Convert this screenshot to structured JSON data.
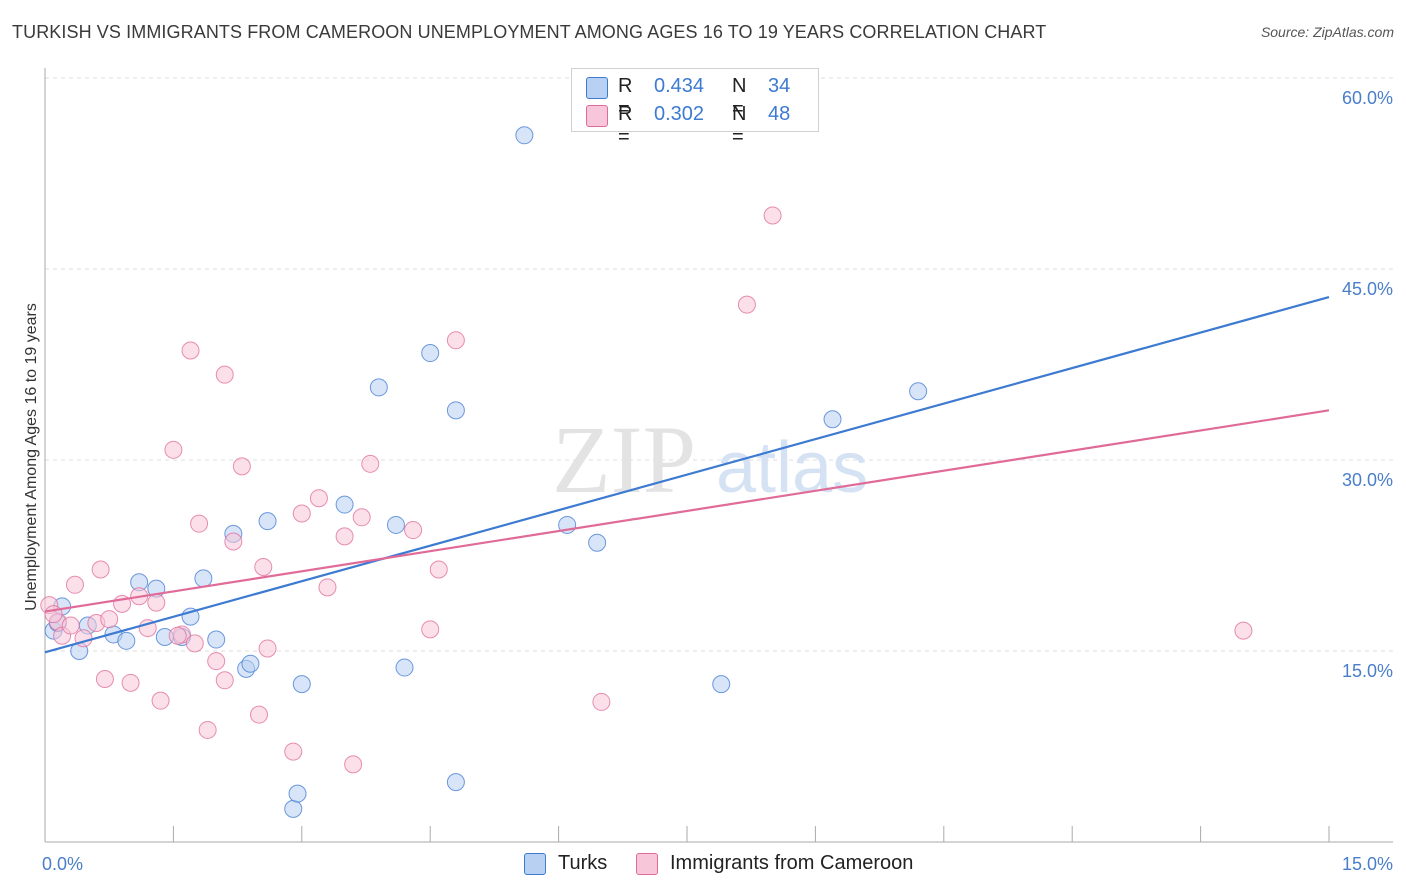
{
  "title": "TURKISH VS IMMIGRANTS FROM CAMEROON UNEMPLOYMENT AMONG AGES 16 TO 19 YEARS CORRELATION CHART",
  "source": "Source: ZipAtlas.com",
  "colors": {
    "turks": "#3d7ad1",
    "turks_fill": "#b8d0f2",
    "cameroon": "#e06b98",
    "cameroon_fill": "#f7c6d8",
    "tick": "#4a7ec9",
    "grid": "#dddddd"
  },
  "legend": {
    "turks": {
      "r_label": "R =",
      "r_value": "0.434",
      "n_label": "N =",
      "n_value": "34"
    },
    "cameroon": {
      "r_label": "R =",
      "r_value": "0.302",
      "n_label": "N =",
      "n_value": "48"
    }
  },
  "watermark": {
    "zip": "ZIP",
    "atlas": "atlas"
  },
  "chart_data": {
    "type": "scatter",
    "xlabel": "",
    "ylabel": "Unemployment Among Ages 16 to 19 years",
    "xlim": [
      0,
      15
    ],
    "ylim": [
      0,
      60
    ],
    "x_tick_labels": [
      "0.0%",
      "15.0%"
    ],
    "y_ticks": [
      15,
      30,
      45,
      60
    ],
    "y_tick_labels": [
      "15.0%",
      "30.0%",
      "45.0%",
      "60.0%"
    ],
    "series": [
      {
        "name": "Turks",
        "r": 0.434,
        "n": 34,
        "trend": {
          "x": [
            0,
            15
          ],
          "y": [
            14.9,
            42.8
          ]
        },
        "points": [
          [
            0.1,
            16.6
          ],
          [
            0.2,
            18.5
          ],
          [
            0.4,
            15.0
          ],
          [
            0.5,
            17.0
          ],
          [
            0.8,
            16.3
          ],
          [
            0.95,
            15.8
          ],
          [
            1.1,
            20.4
          ],
          [
            1.3,
            19.9
          ],
          [
            1.4,
            16.1
          ],
          [
            1.6,
            16.1
          ],
          [
            1.7,
            17.7
          ],
          [
            1.85,
            20.7
          ],
          [
            2.0,
            15.9
          ],
          [
            2.2,
            24.2
          ],
          [
            2.35,
            13.6
          ],
          [
            2.4,
            14.0
          ],
          [
            2.6,
            25.2
          ],
          [
            2.9,
            2.6
          ],
          [
            2.95,
            3.8
          ],
          [
            3.0,
            12.4
          ],
          [
            3.5,
            26.5
          ],
          [
            3.9,
            35.7
          ],
          [
            4.1,
            24.9
          ],
          [
            4.2,
            13.7
          ],
          [
            4.5,
            38.4
          ],
          [
            4.8,
            4.7
          ],
          [
            4.8,
            33.9
          ],
          [
            5.6,
            55.5
          ],
          [
            6.1,
            24.9
          ],
          [
            6.45,
            23.5
          ],
          [
            7.9,
            12.4
          ],
          [
            9.2,
            33.2
          ],
          [
            10.2,
            35.4
          ],
          [
            0.15,
            17.2
          ]
        ]
      },
      {
        "name": "Immigrants from Cameroon",
        "r": 0.302,
        "n": 48,
        "trend": {
          "x": [
            0,
            15
          ],
          "y": [
            18.1,
            33.9
          ]
        },
        "points": [
          [
            0.05,
            18.6
          ],
          [
            0.15,
            17.3
          ],
          [
            0.2,
            16.2
          ],
          [
            0.3,
            17.0
          ],
          [
            0.35,
            20.2
          ],
          [
            0.45,
            16.0
          ],
          [
            0.6,
            17.2
          ],
          [
            0.65,
            21.4
          ],
          [
            0.7,
            12.8
          ],
          [
            0.75,
            17.5
          ],
          [
            0.9,
            18.7
          ],
          [
            1.0,
            12.5
          ],
          [
            1.1,
            19.3
          ],
          [
            1.2,
            16.8
          ],
          [
            1.3,
            18.8
          ],
          [
            1.35,
            11.1
          ],
          [
            1.5,
            30.8
          ],
          [
            1.6,
            16.3
          ],
          [
            1.7,
            38.6
          ],
          [
            1.75,
            15.6
          ],
          [
            1.8,
            25.0
          ],
          [
            1.9,
            8.8
          ],
          [
            2.0,
            14.2
          ],
          [
            2.1,
            12.7
          ],
          [
            2.1,
            36.7
          ],
          [
            2.2,
            23.6
          ],
          [
            2.3,
            29.5
          ],
          [
            2.5,
            10.0
          ],
          [
            2.55,
            21.6
          ],
          [
            2.6,
            15.2
          ],
          [
            2.9,
            7.1
          ],
          [
            3.0,
            25.8
          ],
          [
            3.2,
            27.0
          ],
          [
            3.3,
            20.0
          ],
          [
            3.5,
            24.0
          ],
          [
            3.6,
            6.1
          ],
          [
            3.7,
            25.5
          ],
          [
            3.8,
            29.7
          ],
          [
            4.3,
            24.5
          ],
          [
            4.5,
            16.7
          ],
          [
            4.6,
            21.4
          ],
          [
            4.8,
            39.4
          ],
          [
            6.5,
            11.0
          ],
          [
            8.2,
            42.2
          ],
          [
            8.5,
            49.2
          ],
          [
            14.0,
            16.6
          ],
          [
            0.1,
            17.9
          ],
          [
            1.55,
            16.2
          ]
        ]
      }
    ]
  }
}
